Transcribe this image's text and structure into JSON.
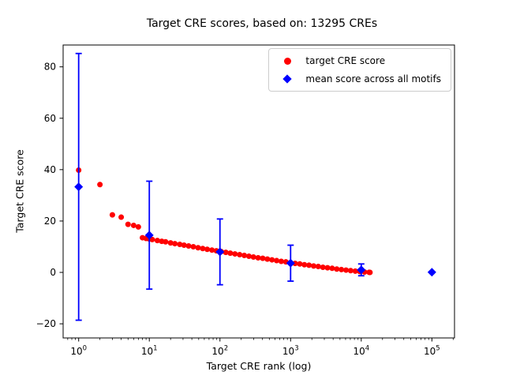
{
  "chart_data": {
    "type": "scatter",
    "title": "Target CRE scores, based on: 13295 CREs",
    "xlabel": "Target CRE rank (log)",
    "ylabel": "Target CRE score",
    "x_scale": "log",
    "xlim_log": [
      -0.22,
      5.32
    ],
    "ylim": [
      -25.5,
      88.5
    ],
    "x_ticks": [
      {
        "v_log": 0,
        "base": "10",
        "exp": "0"
      },
      {
        "v_log": 1,
        "base": "10",
        "exp": "1"
      },
      {
        "v_log": 2,
        "base": "10",
        "exp": "2"
      },
      {
        "v_log": 3,
        "base": "10",
        "exp": "3"
      },
      {
        "v_log": 4,
        "base": "10",
        "exp": "4"
      },
      {
        "v_log": 5,
        "base": "10",
        "exp": "5"
      }
    ],
    "y_ticks": [
      {
        "v": -20,
        "label": "−20"
      },
      {
        "v": 0,
        "label": "0"
      },
      {
        "v": 20,
        "label": "20"
      },
      {
        "v": 40,
        "label": "40"
      },
      {
        "v": 60,
        "label": "60"
      },
      {
        "v": 80,
        "label": "80"
      }
    ],
    "grid": false,
    "legend_position": "upper right",
    "series": [
      {
        "name": "target CRE score",
        "type": "scatter",
        "marker": "circle",
        "color": "#ff0000",
        "note": "13295 ranked CREs, dense decreasing cloud; sampled points below",
        "points": [
          [
            1,
            39.8
          ],
          [
            2,
            34.2
          ],
          [
            3,
            22.4
          ],
          [
            4,
            21.5
          ],
          [
            5,
            18.7
          ],
          [
            6,
            18.3
          ],
          [
            7,
            17.7
          ],
          [
            8,
            13.5
          ],
          [
            9,
            13.2
          ],
          [
            10,
            13.0
          ],
          [
            11,
            12.8
          ],
          [
            13,
            12.4
          ],
          [
            15,
            12.1
          ],
          [
            17,
            11.9
          ],
          [
            20,
            11.5
          ],
          [
            23,
            11.2
          ],
          [
            27,
            10.9
          ],
          [
            31,
            10.6
          ],
          [
            36,
            10.3
          ],
          [
            42,
            10.0
          ],
          [
            49,
            9.6
          ],
          [
            57,
            9.3
          ],
          [
            66,
            9.0
          ],
          [
            77,
            8.7
          ],
          [
            89,
            8.4
          ],
          [
            104,
            8.1
          ],
          [
            121,
            7.8
          ],
          [
            140,
            7.5
          ],
          [
            163,
            7.2
          ],
          [
            190,
            6.9
          ],
          [
            221,
            6.6
          ],
          [
            257,
            6.3
          ],
          [
            298,
            6.0
          ],
          [
            347,
            5.7
          ],
          [
            403,
            5.5
          ],
          [
            469,
            5.2
          ],
          [
            545,
            4.9
          ],
          [
            634,
            4.6
          ],
          [
            737,
            4.3
          ],
          [
            857,
            4.1
          ],
          [
            997,
            3.8
          ],
          [
            1159,
            3.5
          ],
          [
            1348,
            3.3
          ],
          [
            1567,
            3.0
          ],
          [
            1822,
            2.8
          ],
          [
            2119,
            2.5
          ],
          [
            2464,
            2.3
          ],
          [
            2865,
            2.0
          ],
          [
            3331,
            1.8
          ],
          [
            3873,
            1.6
          ],
          [
            4504,
            1.3
          ],
          [
            5237,
            1.1
          ],
          [
            6089,
            0.9
          ],
          [
            7080,
            0.7
          ],
          [
            8233,
            0.5
          ],
          [
            9573,
            0.3
          ],
          [
            11131,
            0.15
          ],
          [
            12943,
            0.05
          ],
          [
            13295,
            0.0
          ]
        ]
      },
      {
        "name": "mean score across all motifs",
        "type": "errorbar",
        "marker": "diamond",
        "color": "#0000ff",
        "points": [
          {
            "x": 1,
            "y": 33.3,
            "err": 51.9
          },
          {
            "x": 10,
            "y": 14.5,
            "err": 21.0
          },
          {
            "x": 100,
            "y": 8.0,
            "err": 12.8
          },
          {
            "x": 1000,
            "y": 3.6,
            "err": 7.0
          },
          {
            "x": 10000,
            "y": 1.0,
            "err": 2.3
          },
          {
            "x": 100000,
            "y": 0.1,
            "err": 0.0
          }
        ]
      }
    ]
  },
  "legend": {
    "items": [
      {
        "label": "target CRE score",
        "marker": "circle",
        "color": "#ff0000"
      },
      {
        "label": "mean score across all motifs",
        "marker": "diamond",
        "color": "#0000ff"
      }
    ]
  }
}
